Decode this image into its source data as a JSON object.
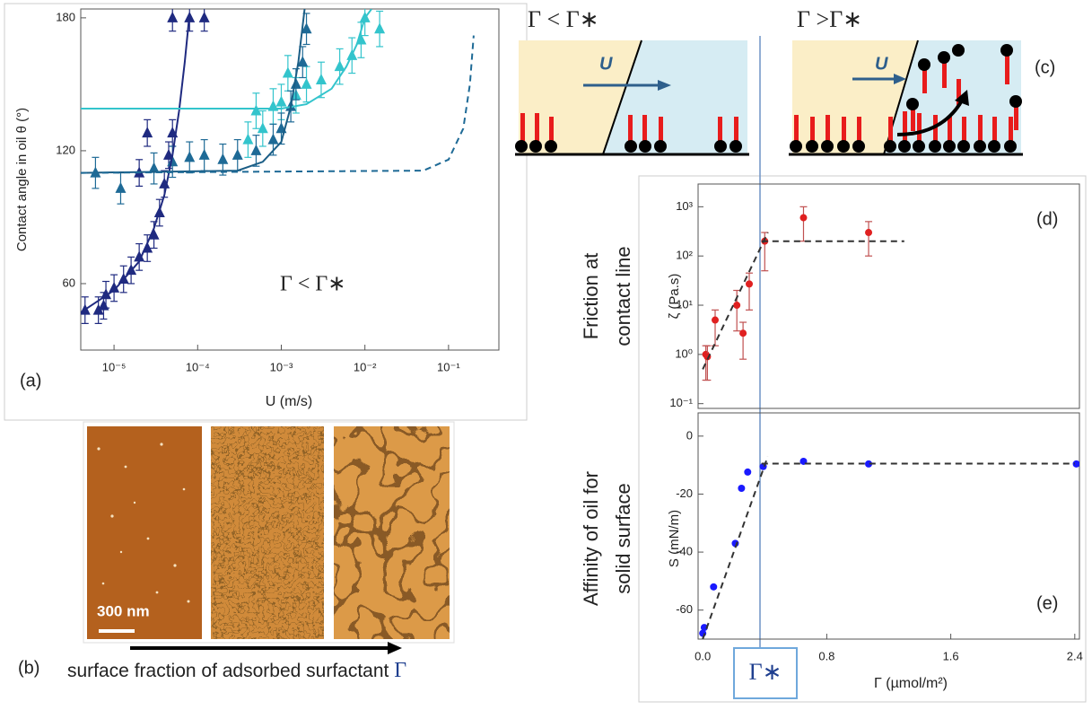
{
  "chart_data": [
    {
      "type": "scatter",
      "panel_label": "(a)",
      "xscale": "log",
      "y_label": "Contact angle in oil θ (°)",
      "x_label": "U (m/s)",
      "annotation": "Γ < Γ∗",
      "xlim": [
        4e-06,
        0.4
      ],
      "ylim": [
        30,
        184
      ],
      "xticks": [
        {
          "value": 1e-05,
          "label": "10⁻⁵"
        },
        {
          "value": 0.0001,
          "label": "10⁻⁴"
        },
        {
          "value": 0.001,
          "label": "10⁻³"
        },
        {
          "value": 0.01,
          "label": "10⁻²"
        },
        {
          "value": 0.1,
          "label": "10⁻¹"
        }
      ],
      "yticks": [
        60,
        120,
        180
      ],
      "series": [
        {
          "color": "#1f2a80",
          "marker": "triangle",
          "x": [
            4.5e-06,
            6.5e-06,
            7.5e-06,
            8e-06,
            1e-05,
            1.3e-05,
            1.6e-05,
            2e-05,
            2e-05,
            2.5e-05,
            2.5e-05,
            3e-05,
            3.5e-05,
            4e-05,
            4.5e-05,
            5e-05,
            5e-05,
            8e-05,
            0.00012
          ],
          "values": [
            48,
            48,
            50,
            55,
            58,
            62,
            66,
            72,
            110,
            76,
            128,
            82,
            92,
            105,
            118,
            128,
            180,
            180,
            180
          ],
          "errors": [
            6,
            6,
            6,
            6,
            6,
            6,
            6,
            6,
            6,
            6,
            6,
            6,
            6,
            6,
            6,
            6,
            6,
            6,
            6
          ]
        },
        {
          "color": "#33c4cc",
          "marker": "triangle",
          "x": [
            0.0004,
            0.0005,
            0.0006,
            0.0008,
            0.001,
            0.0012,
            0.0015,
            0.002,
            0.003,
            0.005,
            0.007,
            0.009,
            0.01,
            0.015
          ],
          "values": [
            125,
            138,
            130,
            140,
            142,
            155,
            145,
            150,
            152,
            158,
            163,
            170,
            180,
            175
          ],
          "errors": [
            8,
            8,
            8,
            8,
            8,
            8,
            8,
            8,
            8,
            8,
            8,
            8,
            8,
            8
          ]
        },
        {
          "color": "#1e6a96",
          "marker": "triangle",
          "x": [
            6e-06,
            1.2e-05,
            3e-05,
            5e-05,
            8e-05,
            0.00012,
            0.0002,
            0.0003,
            0.0005,
            0.0008,
            0.001,
            0.0013,
            0.0015,
            0.0018,
            0.002
          ],
          "values": [
            110,
            103,
            112,
            115,
            117,
            118,
            116,
            118,
            120,
            125,
            130,
            140,
            150,
            160,
            175
          ],
          "errors": [
            7,
            7,
            7,
            7,
            7,
            7,
            7,
            7,
            7,
            7,
            7,
            7,
            7,
            7,
            7
          ]
        },
        {
          "color": "#1f2a80",
          "style": "solid",
          "x": [
            4e-06,
            1e-05,
            2e-05,
            3e-05,
            4e-05,
            5e-05,
            6e-05,
            7e-05,
            8e-05
          ],
          "values": [
            47,
            57,
            70,
            85,
            100,
            118,
            138,
            160,
            182
          ]
        },
        {
          "color": "#33c4cc",
          "style": "solid",
          "x": [
            4e-06,
            0.001,
            0.002,
            0.004,
            0.006,
            0.008,
            0.01,
            0.012
          ],
          "values": [
            139,
            139,
            141,
            148,
            158,
            168,
            180,
            184
          ]
        },
        {
          "color": "#1b5e86",
          "style": "solid",
          "x": [
            4e-06,
            0.0003,
            0.0006,
            0.001,
            0.0013,
            0.0016,
            0.0019
          ],
          "values": [
            110,
            111,
            115,
            124,
            140,
            160,
            184
          ]
        },
        {
          "color": "#1e6a96",
          "style": "dashed",
          "x": [
            4e-06,
            0.05,
            0.1,
            0.15,
            0.18,
            0.2
          ],
          "values": [
            110,
            111,
            116,
            130,
            150,
            172
          ]
        }
      ]
    },
    {
      "type": "scatter",
      "panel_label": "(d)",
      "yscale": "log",
      "y_label": "ζ (Pa.s)",
      "side_label": [
        "Friction at",
        "contact line"
      ],
      "xlim": [
        -0.03,
        2.43
      ],
      "ylim": [
        0.08,
        2900
      ],
      "yticks": [
        {
          "value": 0.1,
          "label": "10⁻¹"
        },
        {
          "value": 1,
          "label": "10⁰"
        },
        {
          "value": 10,
          "label": "10¹"
        },
        {
          "value": 100,
          "label": "10²"
        },
        {
          "value": 1000,
          "label": "10³"
        }
      ],
      "series": [
        {
          "color": "#e02020",
          "marker": "circle",
          "x": [
            0.02,
            0.03,
            0.08,
            0.22,
            0.26,
            0.3,
            0.4,
            0.65,
            1.07
          ],
          "values": [
            1.0,
            0.9,
            5,
            10,
            2.7,
            27,
            200,
            600,
            300
          ],
          "error_low": [
            0.3,
            0.3,
            1.5,
            3,
            0.8,
            8,
            50,
            200,
            100
          ],
          "error_high": [
            1.5,
            1.5,
            8,
            20,
            4.5,
            45,
            300,
            1000,
            500
          ]
        },
        {
          "color": "#333333",
          "style": "dashed",
          "x": [
            0.0,
            0.42
          ],
          "values": [
            0.5,
            300
          ]
        },
        {
          "color": "#333333",
          "style": "dashed",
          "x": [
            0.38,
            1.3
          ],
          "values": [
            200,
            200
          ]
        }
      ]
    },
    {
      "type": "scatter",
      "panel_label": "(e)",
      "y_label": "S (mN/m)",
      "side_label": [
        "Affinity of oil for",
        "solid surface"
      ],
      "x_label": "Γ (µmol/m²)",
      "x_marker_label": "Γ∗",
      "xlim": [
        -0.03,
        2.43
      ],
      "ylim": [
        -70,
        8
      ],
      "xticks": [
        {
          "value": 0,
          "label": "0.0"
        },
        0.8,
        1.6,
        2.4
      ],
      "yticks": [
        0,
        -20,
        -40,
        -60
      ],
      "series": [
        {
          "color": "#1a1aff",
          "marker": "circle",
          "x": [
            0.0,
            0.01,
            0.07,
            0.21,
            0.25,
            0.29,
            0.39,
            0.65,
            1.07,
            2.41
          ],
          "values": [
            -68,
            -66,
            -52,
            -37,
            -18,
            -12.4,
            -10.5,
            -8.7,
            -9.6,
            -9.6
          ]
        },
        {
          "color": "#333333",
          "style": "dashed",
          "x": [
            0.0,
            0.42
          ],
          "values": [
            -70,
            -7
          ]
        },
        {
          "color": "#333333",
          "style": "dashed",
          "x": [
            0.38,
            2.4
          ],
          "values": [
            -9.5,
            -9.5
          ]
        }
      ]
    }
  ],
  "panel_b": {
    "label": "(b)",
    "scale_bar": "300 nm",
    "caption": "surface fraction of adsorbed surfactant ",
    "caption_symbol": "Γ"
  },
  "panel_c": {
    "label": "(c)",
    "left_title": "Γ < Γ∗",
    "right_title": "Γ >Γ∗",
    "left_velocity": "U",
    "right_velocity": "U"
  }
}
